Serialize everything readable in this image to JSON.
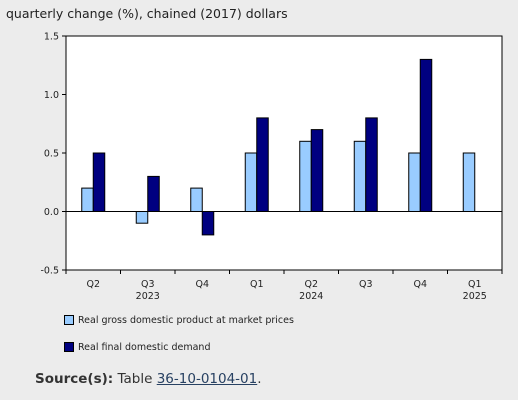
{
  "chart_data": {
    "type": "bar",
    "ylabel": "quarterly change (%), chained (2017) dollars",
    "ylim": [
      -0.5,
      1.5
    ],
    "yticks": [
      "1.5",
      "1.0",
      "0.5",
      "0.0",
      "-0.5"
    ],
    "ytick_values": [
      1.5,
      1.0,
      0.5,
      0.0,
      -0.5
    ],
    "categories": [
      "Q2",
      "Q3",
      "Q4",
      "Q1",
      "Q2",
      "Q3",
      "Q4",
      "Q1"
    ],
    "years": [
      {
        "label": "2023",
        "under": 1
      },
      {
        "label": "2024",
        "under": 4
      },
      {
        "label": "2025",
        "under": 7
      }
    ],
    "series": [
      {
        "name": "Real gross domestic product at market prices",
        "color": "#99ccff",
        "values": [
          0.2,
          -0.1,
          0.2,
          0.5,
          0.6,
          0.6,
          0.5,
          0.5
        ]
      },
      {
        "name": "Real final domestic demand",
        "color": "#000080",
        "values": [
          0.5,
          0.3,
          -0.2,
          0.8,
          0.7,
          0.8,
          1.3,
          null
        ]
      }
    ],
    "legend_position": "bottom-left",
    "grid": false
  },
  "source": {
    "label": "Source(s):",
    "text": "Table",
    "link": "36-10-0104-01",
    "end": "."
  }
}
